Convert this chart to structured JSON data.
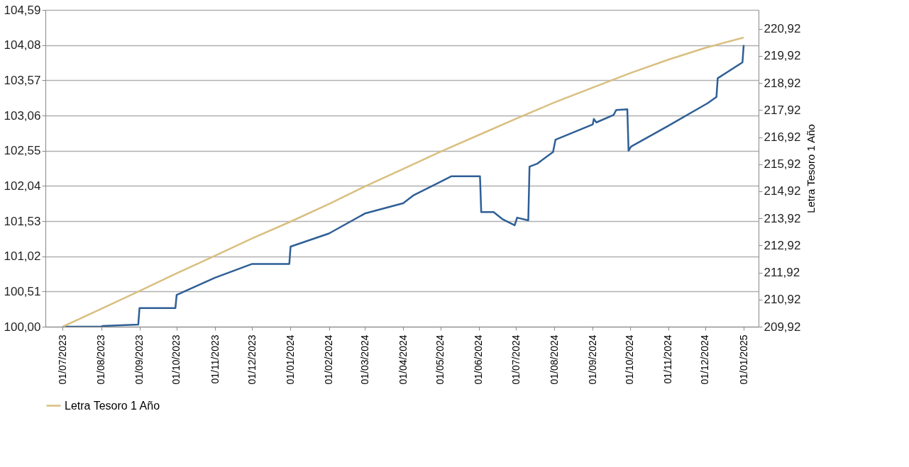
{
  "chart_data": {
    "type": "line",
    "y2label": "Letra Tesoro 1 Año",
    "xlim": [
      "2023-06-17",
      "2025-01-13"
    ],
    "xticks": [
      {
        "value": "2023-07-01",
        "label": "01/07/2023"
      },
      {
        "value": "2023-08-01",
        "label": "01/08/2023"
      },
      {
        "value": "2023-09-01",
        "label": "01/09/2023"
      },
      {
        "value": "2023-10-01",
        "label": "01/10/2023"
      },
      {
        "value": "2023-11-01",
        "label": "01/11/2023"
      },
      {
        "value": "2023-12-01",
        "label": "01/12/2023"
      },
      {
        "value": "2024-01-01",
        "label": "01/01/2024"
      },
      {
        "value": "2024-02-01",
        "label": "01/02/2024"
      },
      {
        "value": "2024-03-01",
        "label": "01/03/2024"
      },
      {
        "value": "2024-04-01",
        "label": "01/04/2024"
      },
      {
        "value": "2024-05-01",
        "label": "01/05/2024"
      },
      {
        "value": "2024-06-01",
        "label": "01/06/2024"
      },
      {
        "value": "2024-07-01",
        "label": "01/07/2024"
      },
      {
        "value": "2024-08-01",
        "label": "01/08/2024"
      },
      {
        "value": "2024-09-01",
        "label": "01/09/2024"
      },
      {
        "value": "2024-10-01",
        "label": "01/10/2024"
      },
      {
        "value": "2024-11-01",
        "label": "01/11/2024"
      },
      {
        "value": "2024-12-01",
        "label": "01/12/2024"
      },
      {
        "value": "2025-01-01",
        "label": "01/01/2025"
      }
    ],
    "ylim": [
      100.0,
      104.59
    ],
    "yticks": [
      {
        "value": 100.0,
        "label": "100,00"
      },
      {
        "value": 100.51,
        "label": "100,51"
      },
      {
        "value": 101.02,
        "label": "101,02"
      },
      {
        "value": 101.53,
        "label": "101,53"
      },
      {
        "value": 102.04,
        "label": "102,04"
      },
      {
        "value": 102.55,
        "label": "102,55"
      },
      {
        "value": 103.06,
        "label": "103,06"
      },
      {
        "value": 103.57,
        "label": "103,57"
      },
      {
        "value": 104.08,
        "label": "104,08"
      },
      {
        "value": 104.59,
        "label": "104,59"
      }
    ],
    "y2lim": [
      209.92,
      221.62
    ],
    "y2ticks": [
      {
        "value": 209.92,
        "label": "209,92"
      },
      {
        "value": 210.92,
        "label": "210,92"
      },
      {
        "value": 211.92,
        "label": "211,92"
      },
      {
        "value": 212.92,
        "label": "212,92"
      },
      {
        "value": 213.92,
        "label": "213,92"
      },
      {
        "value": 214.92,
        "label": "214,92"
      },
      {
        "value": 215.92,
        "label": "215,92"
      },
      {
        "value": 216.92,
        "label": "216,92"
      },
      {
        "value": 217.92,
        "label": "217,92"
      },
      {
        "value": 218.92,
        "label": "218,92"
      },
      {
        "value": 219.92,
        "label": "219,92"
      },
      {
        "value": 220.92,
        "label": "220,92"
      }
    ],
    "grid": "y",
    "legend": "bottom",
    "line_style": "solid",
    "series": [
      {
        "color": "#2e5f96",
        "axis": "y",
        "x": [
          "2023-07-01",
          "2023-08-01",
          "2023-08-02",
          "2023-08-31",
          "2023-09-01",
          "2023-09-30",
          "2023-10-01",
          "2023-11-01",
          "2023-12-01",
          "2023-12-31",
          "2024-01-01",
          "2024-02-01",
          "2024-03-01",
          "2024-04-01",
          "2024-04-09",
          "2024-05-10",
          "2024-06-02",
          "2024-06-03",
          "2024-06-13",
          "2024-06-20",
          "2024-06-30",
          "2024-07-02",
          "2024-07-11",
          "2024-07-12",
          "2024-07-18",
          "2024-07-31",
          "2024-08-02",
          "2024-09-01",
          "2024-09-02",
          "2024-09-04",
          "2024-09-18",
          "2024-09-20",
          "2024-09-29",
          "2024-09-30",
          "2024-10-02",
          "2024-11-01",
          "2024-12-03",
          "2024-12-10",
          "2024-12-11",
          "2024-12-31",
          "2025-01-01"
        ],
        "values": [
          100.0,
          100.0,
          100.01,
          100.03,
          100.27,
          100.27,
          100.46,
          100.71,
          100.91,
          100.91,
          101.16,
          101.35,
          101.64,
          101.79,
          101.9,
          102.18,
          102.18,
          101.66,
          101.66,
          101.56,
          101.47,
          101.58,
          101.54,
          102.32,
          102.36,
          102.53,
          102.71,
          102.93,
          103.01,
          102.96,
          103.07,
          103.14,
          103.15,
          102.55,
          102.61,
          102.91,
          103.24,
          103.33,
          103.6,
          103.83,
          104.08
        ]
      },
      {
        "name": "Letra Tesoro 1 Año",
        "color": "#d9bf80",
        "axis": "y2",
        "x": [
          "2023-07-01",
          "2023-08-01",
          "2023-09-01",
          "2023-10-01",
          "2023-11-01",
          "2023-12-01",
          "2024-01-01",
          "2024-02-01",
          "2024-03-01",
          "2024-04-01",
          "2024-05-01",
          "2024-06-01",
          "2024-07-01",
          "2024-08-01",
          "2024-09-01",
          "2024-10-01",
          "2024-11-01",
          "2024-12-01",
          "2025-01-01"
        ],
        "values": [
          209.92,
          210.58,
          211.24,
          211.89,
          212.54,
          213.18,
          213.8,
          214.45,
          215.1,
          215.75,
          216.38,
          217.0,
          217.6,
          218.2,
          218.75,
          219.28,
          219.78,
          220.22,
          220.6
        ]
      }
    ]
  }
}
